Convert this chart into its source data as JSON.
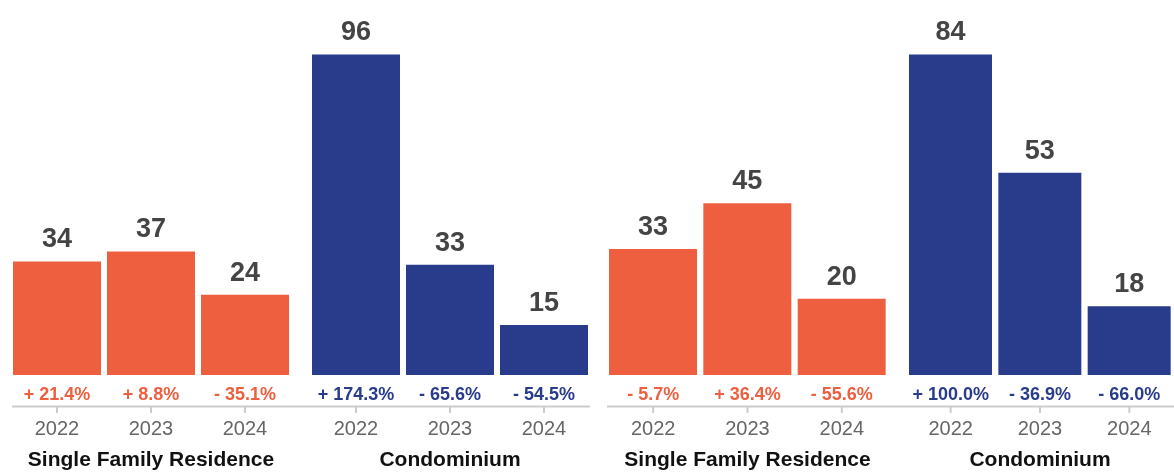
{
  "chart_data": [
    {
      "type": "bar",
      "categories": [
        "2022",
        "2023",
        "2024"
      ],
      "values": [
        34,
        37,
        24
      ],
      "color": "#ee5f40",
      "xlabel": "Single Family Residence",
      "data_labels": true,
      "annotations": [
        "+ 21.4%",
        "+ 8.8%",
        "- 35.1%"
      ]
    },
    {
      "type": "bar",
      "categories": [
        "2022",
        "2023",
        "2024"
      ],
      "values": [
        96,
        33,
        15
      ],
      "color": "#293c8c",
      "xlabel": "Condominium",
      "data_labels": true,
      "annotations": [
        "+ 174.3%",
        "- 65.6%",
        "- 54.5%"
      ]
    },
    {
      "type": "bar",
      "categories": [
        "2022",
        "2023",
        "2024"
      ],
      "values": [
        33,
        45,
        20
      ],
      "color": "#ee5f40",
      "xlabel": "Single Family Residence",
      "data_labels": true,
      "annotations": [
        "- 5.7%",
        "+ 36.4%",
        "- 55.6%"
      ]
    },
    {
      "type": "bar",
      "categories": [
        "2022",
        "2023",
        "2024"
      ],
      "values": [
        84,
        53,
        18
      ],
      "color": "#293c8c",
      "xlabel": "Condominium",
      "data_labels": true,
      "annotations": [
        "+ 100.0%",
        "- 36.9%",
        "- 66.0%"
      ]
    }
  ]
}
